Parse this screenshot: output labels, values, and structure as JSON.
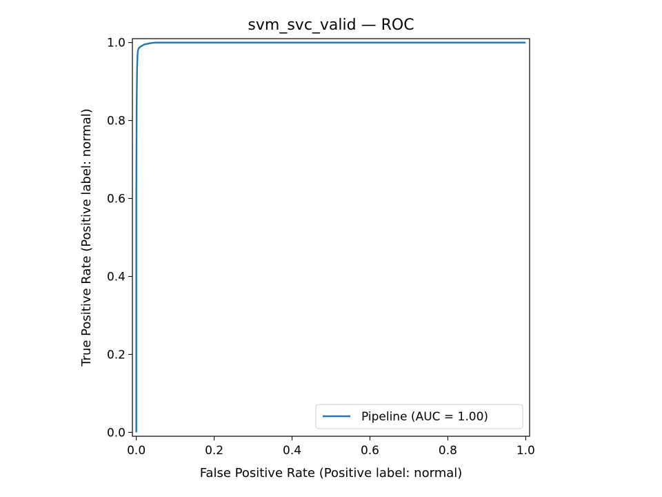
{
  "chart_data": {
    "type": "line",
    "title": "svm_svc_valid — ROC",
    "xlabel": "False Positive Rate (Positive label: normal)",
    "ylabel": "True Positive Rate (Positive label: normal)",
    "xlim": [
      -0.01,
      1.01
    ],
    "ylim": [
      -0.01,
      1.01
    ],
    "xticks": [
      0.0,
      0.2,
      0.4,
      0.6,
      0.8,
      1.0
    ],
    "xtick_labels": [
      "0.0",
      "0.2",
      "0.4",
      "0.6",
      "0.8",
      "1.0"
    ],
    "yticks": [
      0.0,
      0.2,
      0.4,
      0.6,
      0.8,
      1.0
    ],
    "ytick_labels": [
      "0.0",
      "0.2",
      "0.4",
      "0.6",
      "0.8",
      "1.0"
    ],
    "grid": false,
    "legend_position": "lower-right",
    "series": [
      {
        "name": "Pipeline (AUC = 1.00)",
        "color": "#1f77b4",
        "x": [
          0.0,
          0.0,
          0.001,
          0.002,
          0.003,
          0.004,
          0.006,
          0.01,
          0.015,
          0.02,
          0.03,
          0.04,
          0.05,
          0.1,
          1.0
        ],
        "y": [
          0.0,
          0.6,
          0.85,
          0.93,
          0.965,
          0.978,
          0.985,
          0.989,
          0.992,
          0.995,
          0.997,
          0.999,
          1.0,
          1.0,
          1.0
        ]
      }
    ]
  }
}
